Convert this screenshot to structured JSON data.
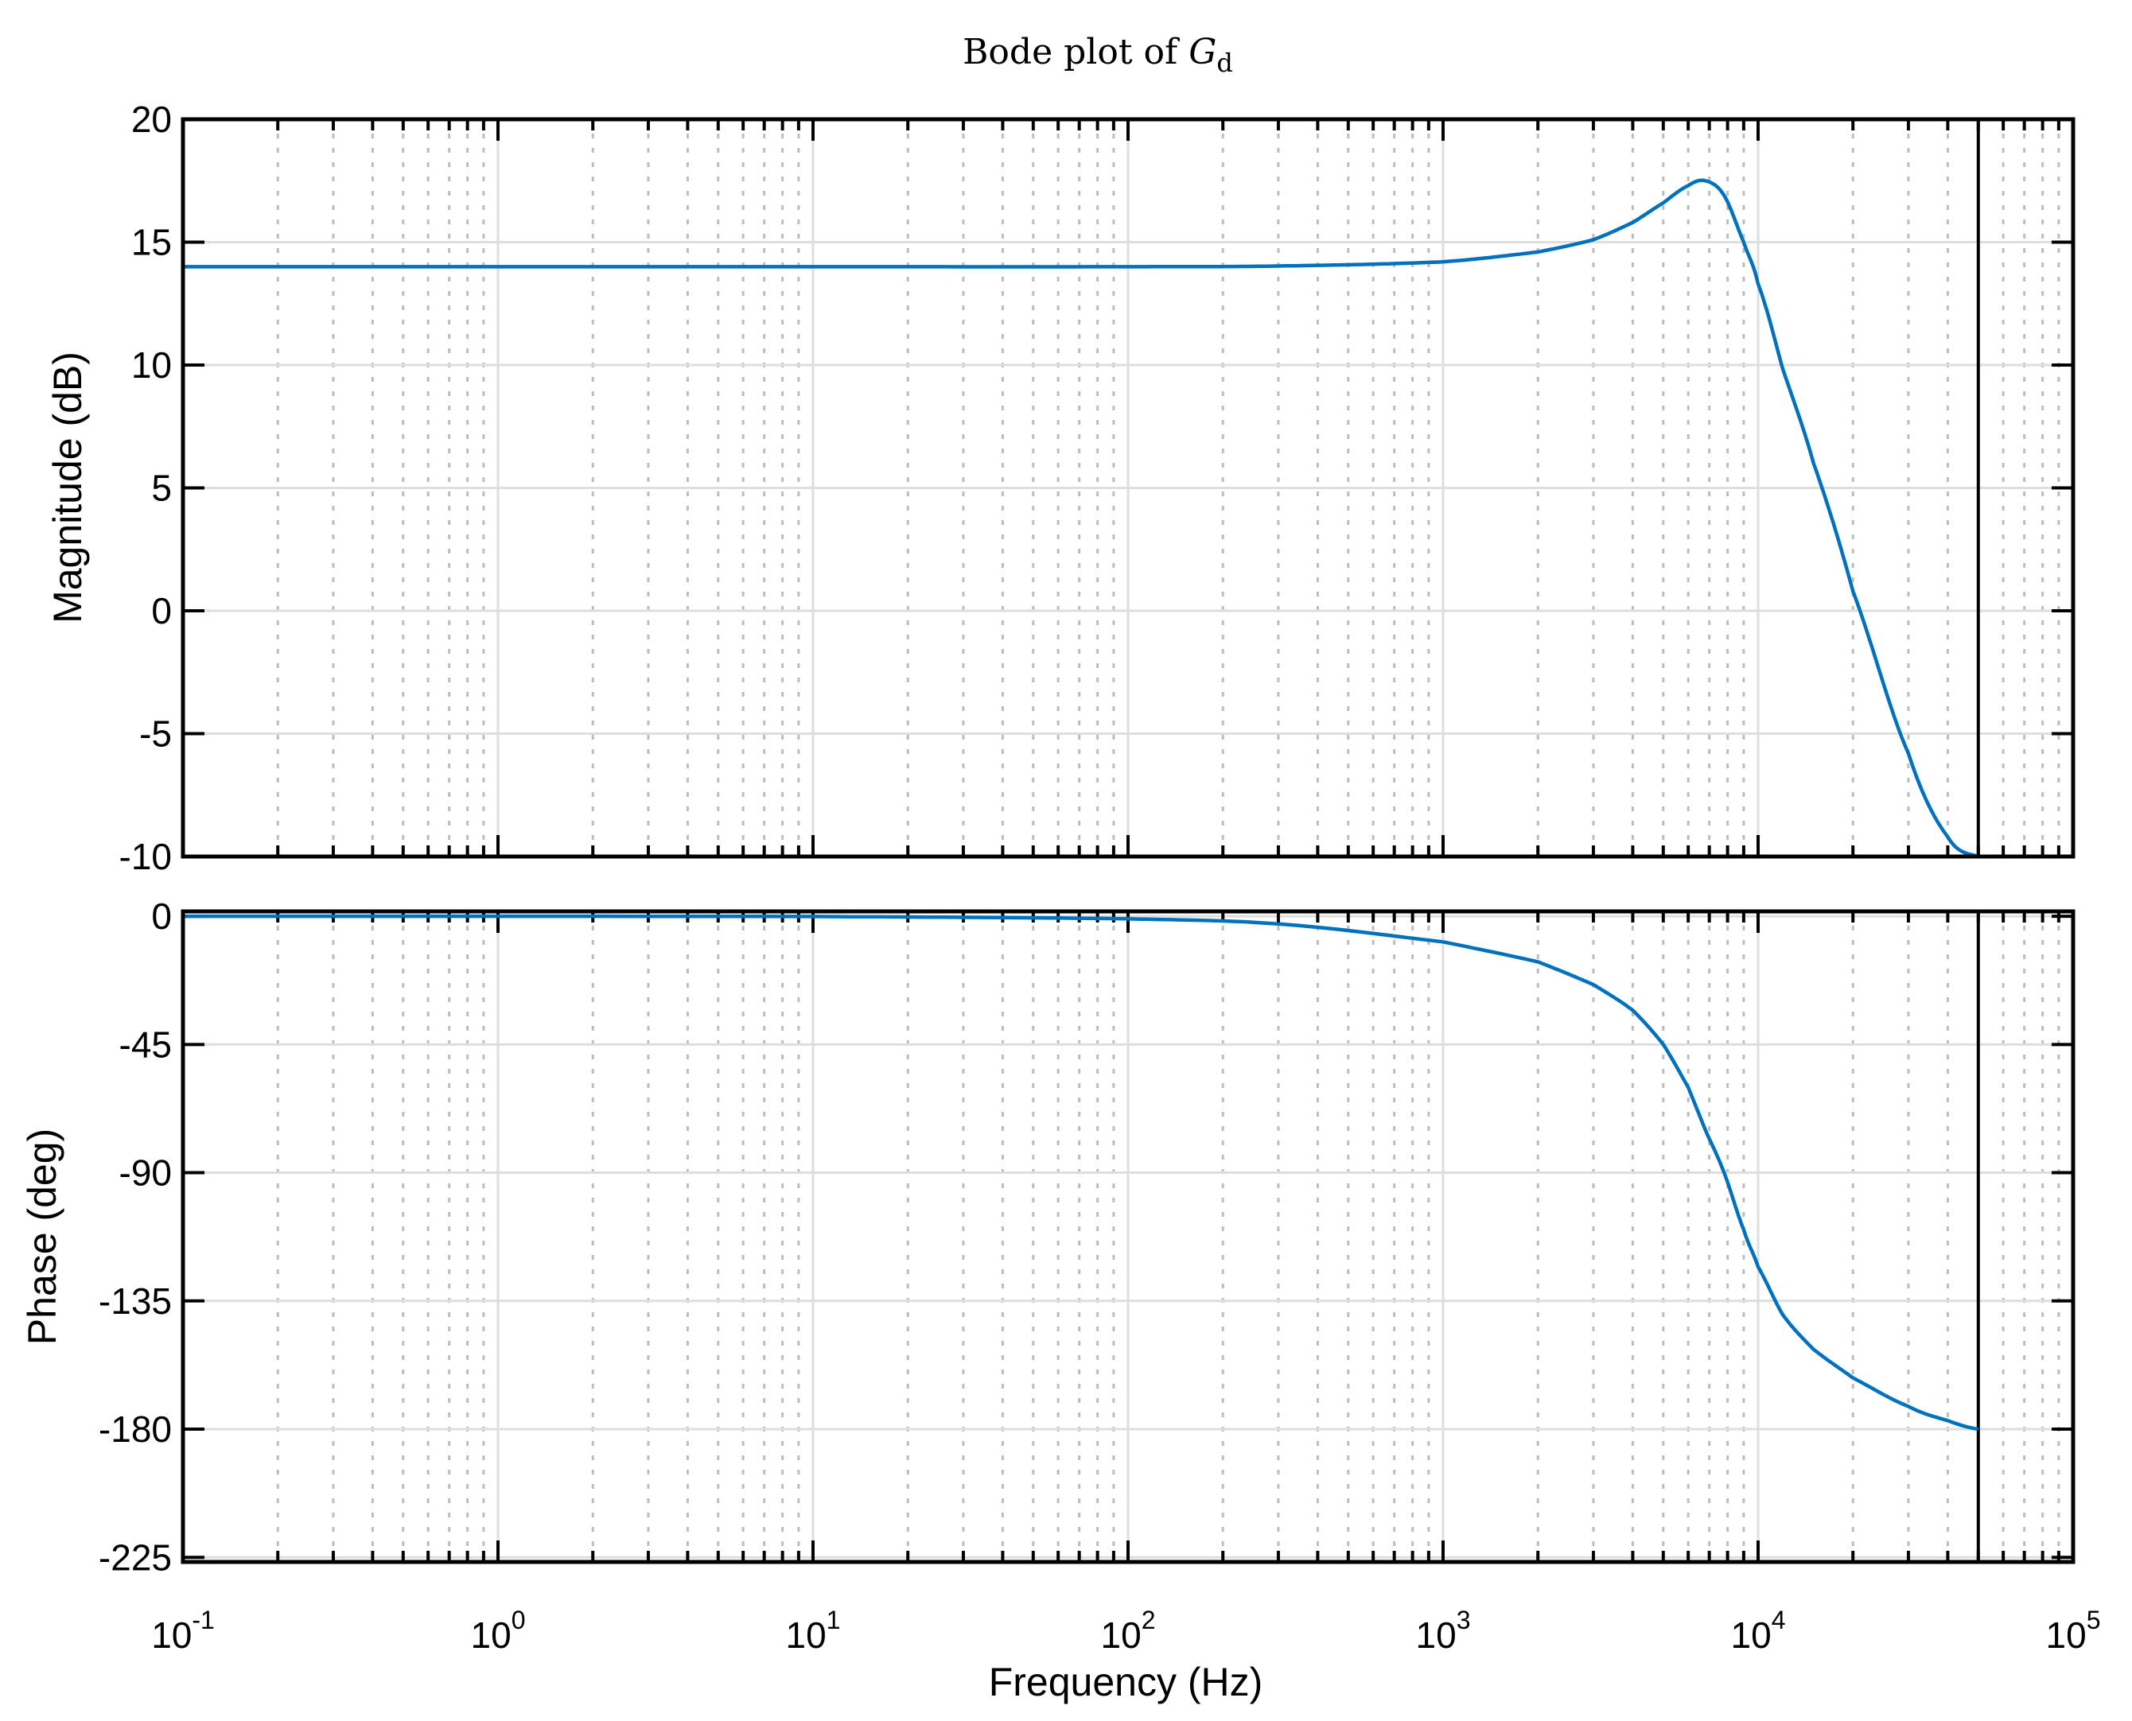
{
  "chart_data": {
    "type": "line",
    "title": "Bode plot of G_d",
    "title_parts": {
      "prefix": "Bode plot of ",
      "symbol": "G",
      "subscript": "d"
    },
    "xlabel": "Frequency  (Hz)",
    "xscale": "log",
    "xlim": [
      0.1,
      100000
    ],
    "x_tick_labels": [
      {
        "base": "10",
        "exp": "-1",
        "value": 0.1
      },
      {
        "base": "10",
        "exp": "0",
        "value": 1
      },
      {
        "base": "10",
        "exp": "1",
        "value": 10
      },
      {
        "base": "10",
        "exp": "2",
        "value": 100
      },
      {
        "base": "10",
        "exp": "3",
        "value": 1000
      },
      {
        "base": "10",
        "exp": "4",
        "value": 10000
      },
      {
        "base": "10",
        "exp": "5",
        "value": 100000
      }
    ],
    "grid": true,
    "minor_grid": true,
    "nyquist_marker_hz": 50000,
    "line_color": "#0072BD",
    "subplots": [
      {
        "name": "magnitude",
        "ylabel": "Magnitude (dB)",
        "ylim": [
          -10,
          20
        ],
        "y_ticks": [
          20,
          15,
          10,
          5,
          0,
          -5,
          -10
        ]
      },
      {
        "name": "phase",
        "ylabel": "Phase (deg)",
        "ylim": [
          -226.6,
          1.7
        ],
        "y_ticks": [
          0,
          -45,
          -90,
          -135,
          -180,
          -225
        ]
      }
    ],
    "x": [
      0.1,
      10,
      100,
      300,
      1000,
      2000,
      3000,
      4000,
      5000,
      6000,
      6800,
      7800,
      9000,
      10000,
      12000,
      15000,
      20000,
      30000,
      40000,
      50000
    ],
    "series": [
      {
        "name": "Magnitude (dB)",
        "values": [
          14.0,
          14.0,
          14.0,
          14.03,
          14.2,
          14.6,
          15.1,
          15.8,
          16.6,
          17.3,
          17.5,
          16.9,
          15.0,
          13.3,
          9.8,
          6.0,
          0.8,
          -5.8,
          -9.2,
          -10.0
        ]
      },
      {
        "name": "Phase (deg)",
        "values": [
          0,
          -0.1,
          -0.9,
          -2.7,
          -9,
          -16,
          -24,
          -33,
          -45,
          -60,
          -75,
          -90,
          -110,
          -123,
          -140,
          -152,
          -162,
          -172,
          -177,
          -180
        ]
      }
    ]
  }
}
